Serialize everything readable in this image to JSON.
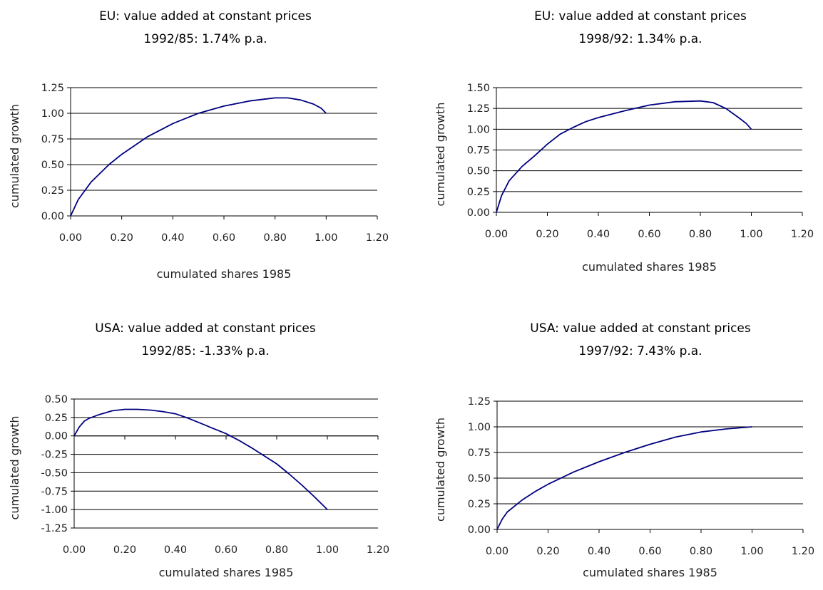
{
  "chart_data": [
    {
      "type": "line",
      "title": "EU: value added at constant prices",
      "subtitle": "1992/85: 1.74% p.a.",
      "xlabel": "cumulated shares 1985",
      "ylabel": "cumulated growth",
      "xlim": [
        0,
        1.2
      ],
      "ylim": [
        0,
        1.25
      ],
      "xticks": [
        "0.00",
        "0.20",
        "0.40",
        "0.60",
        "0.80",
        "1.00",
        "1.20"
      ],
      "yticks": [
        "0.00",
        "0.25",
        "0.50",
        "0.75",
        "1.00",
        "1.25"
      ],
      "grid": "horizontal",
      "color": "#000080",
      "series": [
        {
          "x": [
            0,
            0.03,
            0.08,
            0.15,
            0.2,
            0.3,
            0.4,
            0.5,
            0.6,
            0.7,
            0.8,
            0.85,
            0.9,
            0.95,
            0.98,
            1.0
          ],
          "y": [
            0,
            0.16,
            0.33,
            0.5,
            0.6,
            0.77,
            0.9,
            1.0,
            1.07,
            1.12,
            1.15,
            1.15,
            1.13,
            1.09,
            1.05,
            1.0
          ]
        }
      ]
    },
    {
      "type": "line",
      "title": "EU: value added at constant prices",
      "subtitle": "1998/92: 1.34% p.a.",
      "xlabel": "cumulated shares 1985",
      "ylabel": "cumulated growth",
      "xlim": [
        0,
        1.2
      ],
      "ylim": [
        0,
        1.5
      ],
      "xticks": [
        "0.00",
        "0.20",
        "0.40",
        "0.60",
        "0.80",
        "1.00",
        "1.20"
      ],
      "yticks": [
        "0.00",
        "0.25",
        "0.50",
        "0.75",
        "1.00",
        "1.25",
        "1.50"
      ],
      "grid": "horizontal",
      "color": "#000080",
      "series": [
        {
          "x": [
            0,
            0.02,
            0.05,
            0.1,
            0.15,
            0.2,
            0.25,
            0.3,
            0.35,
            0.4,
            0.5,
            0.6,
            0.7,
            0.8,
            0.85,
            0.9,
            0.95,
            0.98,
            1.0
          ],
          "y": [
            0,
            0.2,
            0.38,
            0.55,
            0.68,
            0.82,
            0.94,
            1.02,
            1.09,
            1.14,
            1.22,
            1.29,
            1.33,
            1.34,
            1.32,
            1.25,
            1.14,
            1.07,
            1.0
          ]
        }
      ]
    },
    {
      "type": "line",
      "title": "USA: value added at constant prices",
      "subtitle": "1992/85: -1.33% p.a.",
      "xlabel": "cumulated shares 1985",
      "ylabel": "cumulated growth",
      "xlim": [
        0,
        1.2
      ],
      "ylim": [
        -1.25,
        0.5
      ],
      "xticks": [
        "0.00",
        "0.20",
        "0.40",
        "0.60",
        "0.80",
        "1.00",
        "1.20"
      ],
      "yticks": [
        "-1.25",
        "-1.00",
        "-0.75",
        "-0.50",
        "-0.25",
        "0.00",
        "0.25",
        "0.50"
      ],
      "grid": "horizontal",
      "color": "#000080",
      "series": [
        {
          "x": [
            0,
            0.02,
            0.04,
            0.06,
            0.1,
            0.15,
            0.2,
            0.25,
            0.3,
            0.35,
            0.4,
            0.45,
            0.5,
            0.55,
            0.6,
            0.65,
            0.7,
            0.75,
            0.8,
            0.85,
            0.9,
            0.95,
            1.0
          ],
          "y": [
            0,
            0.12,
            0.2,
            0.24,
            0.29,
            0.34,
            0.36,
            0.36,
            0.35,
            0.33,
            0.3,
            0.24,
            0.17,
            0.1,
            0.03,
            -0.06,
            -0.16,
            -0.27,
            -0.38,
            -0.52,
            -0.67,
            -0.83,
            -1.0
          ]
        }
      ]
    },
    {
      "type": "line",
      "title": "USA: value added at constant prices",
      "subtitle": "1997/92: 7.43% p.a.",
      "xlabel": "cumulated shares 1985",
      "ylabel": "cumulated growth",
      "xlim": [
        0,
        1.2
      ],
      "ylim": [
        0,
        1.25
      ],
      "xticks": [
        "0.00",
        "0.20",
        "0.40",
        "0.60",
        "0.80",
        "1.00",
        "1.20"
      ],
      "yticks": [
        "0.00",
        "0.25",
        "0.50",
        "0.75",
        "1.00",
        "1.25"
      ],
      "grid": "horizontal",
      "color": "#000080",
      "series": [
        {
          "x": [
            0,
            0.02,
            0.04,
            0.07,
            0.1,
            0.15,
            0.2,
            0.3,
            0.4,
            0.5,
            0.6,
            0.7,
            0.8,
            0.9,
            1.0
          ],
          "y": [
            0,
            0.1,
            0.17,
            0.23,
            0.29,
            0.37,
            0.44,
            0.56,
            0.66,
            0.75,
            0.83,
            0.9,
            0.95,
            0.98,
            1.0
          ]
        }
      ]
    }
  ]
}
